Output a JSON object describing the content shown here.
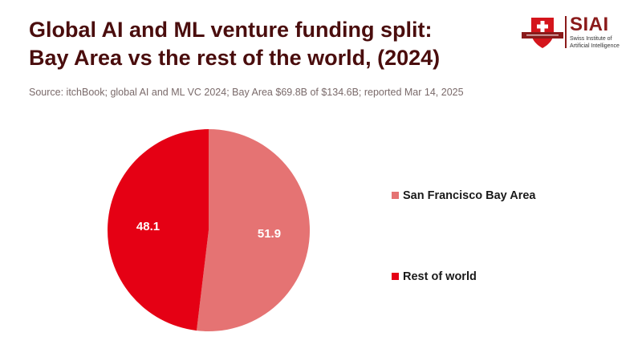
{
  "header": {
    "title_line1": "Global AI and ML venture funding split:",
    "title_line2": "Bay Area vs the rest of the world, (2024)",
    "source": "Source: itchBook; global AI and ML VC 2024; Bay Area $69.8B of $134.6B; reported Mar 14, 2025"
  },
  "logo": {
    "name": "SIAI",
    "subtitle_line1": "Swiss Institute of",
    "subtitle_line2": "Artificial Intelligence",
    "colors": {
      "red": "#d4151c",
      "dark": "#8a1a1a"
    }
  },
  "chart_data": {
    "type": "pie",
    "title": "Global AI and ML venture funding split: Bay Area vs the rest of the world, (2024)",
    "slices": [
      {
        "label": "San Francisco Bay Area",
        "value": 51.9,
        "display": "51.9",
        "color": "#e57373"
      },
      {
        "label": "Rest of world",
        "value": 48.1,
        "display": "48.1",
        "color": "#e50014"
      }
    ],
    "start_angle_deg": 0,
    "direction": "clockwise",
    "legend_position": "right"
  }
}
